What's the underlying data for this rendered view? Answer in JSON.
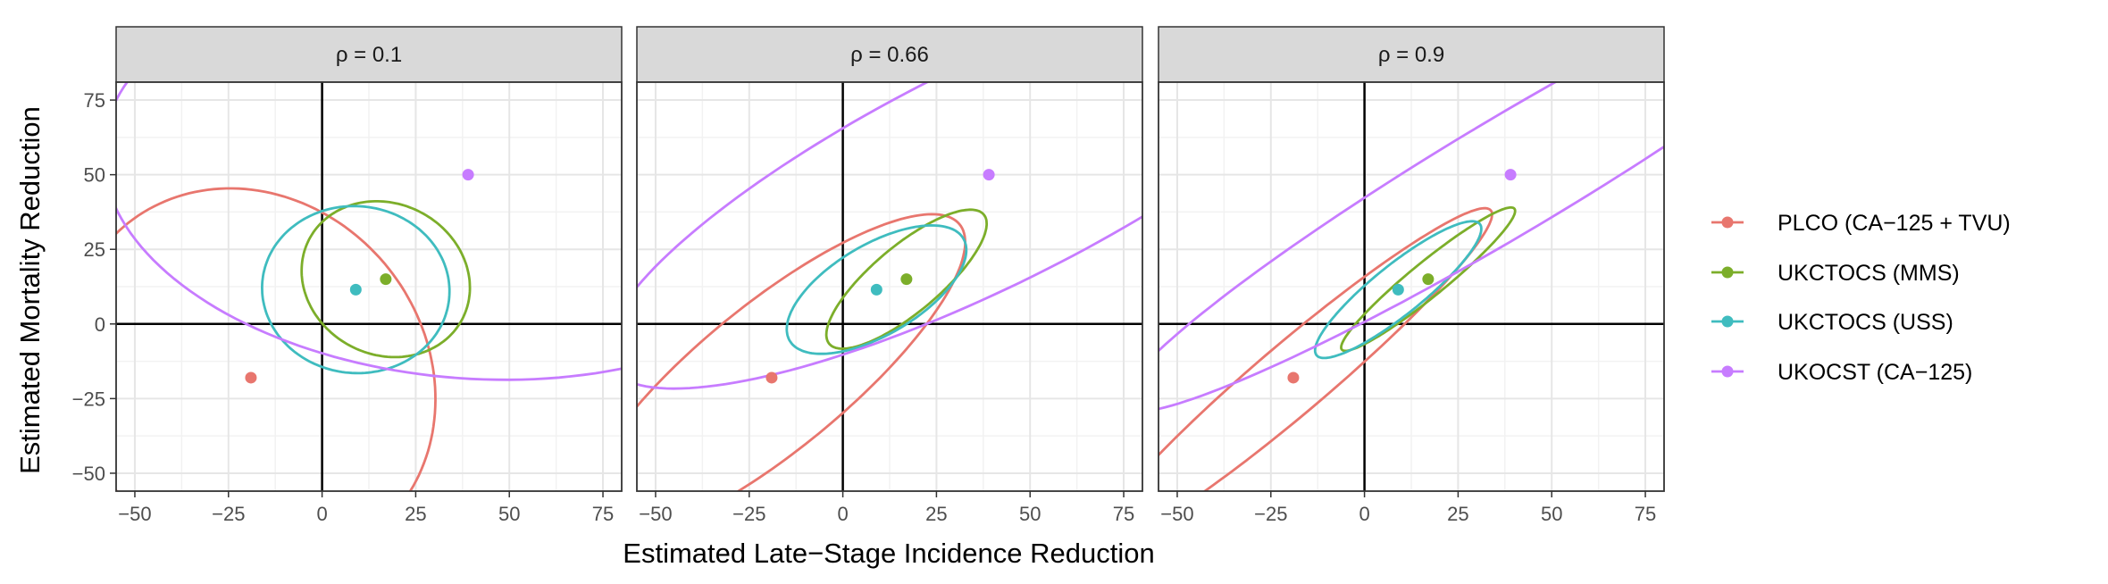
{
  "chart_data": {
    "type": "scatter",
    "xlabel": "Estimated Late−Stage Incidence Reduction",
    "ylabel": "Estimated Mortality Reduction",
    "xlim": [
      -55,
      80
    ],
    "ylim": [
      -56,
      81
    ],
    "x_ticks": [
      -50,
      -25,
      0,
      25,
      50,
      75
    ],
    "y_ticks": [
      -50,
      -25,
      0,
      25,
      50,
      75
    ],
    "x_tick_labels": [
      "−50",
      "−25",
      "0",
      "25",
      "50",
      "75"
    ],
    "y_tick_labels": [
      "−50",
      "−25",
      "0",
      "25",
      "50",
      "75"
    ],
    "grid": true,
    "reference_lines": {
      "x": 0,
      "y": 0
    },
    "legend_position": "right",
    "colors": {
      "PLCO": "#E8766E",
      "MMS": "#7CAE2A",
      "USS": "#3FBCBF",
      "CA125": "#C77CFF",
      "strip_bg": "#D9D9D9",
      "grid_major": "#E6E6E6",
      "grid_minor": "#F2F2F2"
    },
    "series": [
      {
        "name": "PLCO (CA−125 + TVU)",
        "color_key": "PLCO",
        "point": [
          -19,
          -18
        ]
      },
      {
        "name": "UKCTOCS (MMS)",
        "color_key": "MMS",
        "point": [
          17,
          15
        ]
      },
      {
        "name": "UKCTOCS (USS)",
        "color_key": "USS",
        "point": [
          9,
          11.5
        ]
      },
      {
        "name": "UKOCST (CA−125)",
        "color_key": "CA125",
        "point": [
          39,
          50
        ]
      }
    ],
    "panels": [
      {
        "label": "ρ = 0.1",
        "ellipses": [
          {
            "series": 0,
            "center": [
              -19,
              -18
            ],
            "rx": 48.5,
            "ry": 64.0,
            "angle_deg": 12
          },
          {
            "series": 1,
            "center": [
              17,
              15
            ],
            "rx": 22.0,
            "ry": 26.5,
            "angle_deg": 18
          },
          {
            "series": 2,
            "center": [
              9,
              11.5
            ],
            "rx": 25.0,
            "ry": 28.0,
            "angle_deg": 5
          },
          {
            "series": 3,
            "center": [
              39,
              50
            ],
            "rx": 98.0,
            "ry": 68.0,
            "angle_deg": -8
          }
        ]
      },
      {
        "label": "ρ = 0.66",
        "ellipses": [
          {
            "series": 0,
            "center": [
              -19,
              -18
            ],
            "rx": 72.0,
            "ry": 22.0,
            "angle_deg": 47
          },
          {
            "series": 1,
            "center": [
              17,
              15
            ],
            "rx": 30.0,
            "ry": 10.0,
            "angle_deg": 48
          },
          {
            "series": 2,
            "center": [
              9,
              11.5
            ],
            "rx": 29.0,
            "ry": 14.0,
            "angle_deg": 40
          },
          {
            "series": 3,
            "center": [
              39,
              50
            ],
            "rx": 120.0,
            "ry": 35.0,
            "angle_deg": 33
          }
        ]
      },
      {
        "label": "ρ = 0.9",
        "ellipses": [
          {
            "series": 0,
            "center": [
              -19,
              -18
            ],
            "rx": 77.0,
            "ry": 10.5,
            "angle_deg": 47
          },
          {
            "series": 1,
            "center": [
              17,
              15
            ],
            "rx": 33.0,
            "ry": 5.2,
            "angle_deg": 46
          },
          {
            "series": 2,
            "center": [
              9,
              11.5
            ],
            "rx": 31.0,
            "ry": 7.5,
            "angle_deg": 46
          },
          {
            "series": 3,
            "center": [
              39,
              50
            ],
            "rx": 130.0,
            "ry": 18.0,
            "angle_deg": 37
          }
        ]
      }
    ]
  }
}
